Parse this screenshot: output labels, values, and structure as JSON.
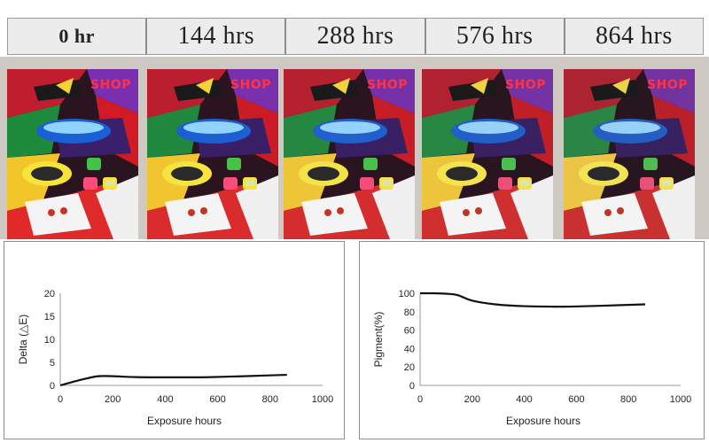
{
  "time_labels": [
    "0 hr",
    "144 hrs",
    "288 hrs",
    "576 hrs",
    "864 hrs"
  ],
  "sample_logo_text": "SHOP",
  "colors": {
    "header_bg": "#ececec",
    "photo_bg": "#cfc9c4",
    "line": "#111111"
  },
  "chart_data": [
    {
      "type": "line",
      "xlabel": "Exposure hours",
      "ylabel": "Delta (△E)",
      "xlim": [
        0,
        1000
      ],
      "ylim": [
        0,
        20
      ],
      "xticks": [
        0,
        200,
        400,
        600,
        800,
        1000
      ],
      "yticks": [
        0,
        5,
        10,
        15,
        20
      ],
      "grid": false,
      "legend": "none",
      "series": [
        {
          "x": [
            0,
            50,
            100,
            144,
            200,
            288,
            400,
            500,
            576,
            700,
            864
          ],
          "y": [
            0,
            0.8,
            1.5,
            2.0,
            2.0,
            1.8,
            1.75,
            1.75,
            1.8,
            2.0,
            2.3
          ]
        }
      ]
    },
    {
      "type": "line",
      "xlabel": "Exposure hours",
      "ylabel": "Pigment(%)",
      "xlim": [
        0,
        1000
      ],
      "ylim": [
        0,
        100
      ],
      "xticks": [
        0,
        200,
        400,
        600,
        800,
        1000
      ],
      "yticks": [
        0,
        20,
        40,
        60,
        80,
        100
      ],
      "grid": false,
      "legend": "none",
      "series": [
        {
          "x": [
            0,
            50,
            100,
            144,
            200,
            288,
            400,
            500,
            576,
            700,
            864
          ],
          "y": [
            100,
            100,
            99.5,
            98,
            92,
            88,
            86,
            85.5,
            85.5,
            86.5,
            88
          ]
        }
      ]
    }
  ]
}
